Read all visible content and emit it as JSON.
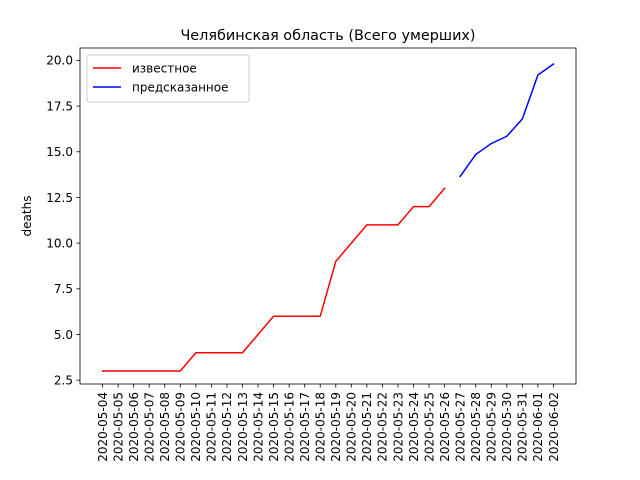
{
  "chart_data": {
    "type": "line",
    "title": "Челябинская область (Всего умерших)",
    "xlabel": "",
    "ylabel": "deaths",
    "ylim": [
      2.29,
      20.68
    ],
    "yticks": [
      "2.5",
      "5.0",
      "7.5",
      "10.0",
      "12.5",
      "15.0",
      "17.5",
      "20.0"
    ],
    "ytick_values": [
      2.5,
      5.0,
      7.5,
      10.0,
      12.5,
      15.0,
      17.5,
      20.0
    ],
    "categories": [
      "2020-05-04",
      "2020-05-05",
      "2020-05-06",
      "2020-05-07",
      "2020-05-08",
      "2020-05-09",
      "2020-05-10",
      "2020-05-11",
      "2020-05-12",
      "2020-05-13",
      "2020-05-14",
      "2020-05-15",
      "2020-05-16",
      "2020-05-17",
      "2020-05-18",
      "2020-05-19",
      "2020-05-20",
      "2020-05-21",
      "2020-05-22",
      "2020-05-23",
      "2020-05-24",
      "2020-05-25",
      "2020-05-26",
      "2020-05-27",
      "2020-05-28",
      "2020-05-29",
      "2020-05-30",
      "2020-05-31",
      "2020-06-01",
      "2020-06-02"
    ],
    "grid": false,
    "legend_position": "top-left",
    "series": [
      {
        "name": "известное",
        "color": "#ff0000",
        "x": [
          "2020-05-04",
          "2020-05-05",
          "2020-05-06",
          "2020-05-07",
          "2020-05-08",
          "2020-05-09",
          "2020-05-10",
          "2020-05-11",
          "2020-05-12",
          "2020-05-13",
          "2020-05-14",
          "2020-05-15",
          "2020-05-16",
          "2020-05-17",
          "2020-05-18",
          "2020-05-19",
          "2020-05-20",
          "2020-05-21",
          "2020-05-22",
          "2020-05-23",
          "2020-05-24",
          "2020-05-25",
          "2020-05-26"
        ],
        "values": [
          3,
          3,
          3,
          3,
          3,
          3,
          4,
          4,
          4,
          4,
          5,
          6,
          6,
          6,
          6,
          9,
          10,
          11,
          11,
          11,
          12,
          12,
          13
        ]
      },
      {
        "name": "предсказанное",
        "color": "#0000ff",
        "x": [
          "2020-05-27",
          "2020-05-28",
          "2020-05-29",
          "2020-05-30",
          "2020-05-31",
          "2020-06-01",
          "2020-06-02"
        ],
        "values": [
          13.65,
          14.85,
          15.45,
          15.85,
          16.8,
          19.2,
          19.8
        ]
      }
    ]
  }
}
